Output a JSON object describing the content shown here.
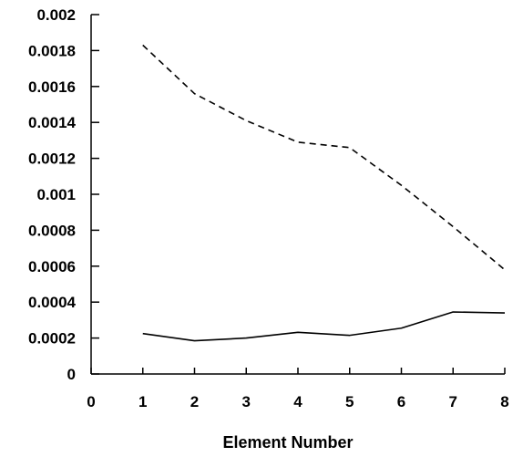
{
  "chart_data": {
    "type": "line",
    "xlabel": "Element Number",
    "ylabel": "",
    "title": "",
    "xlim": [
      0,
      8
    ],
    "ylim": [
      0,
      0.002
    ],
    "x_ticks": [
      "0",
      "1",
      "2",
      "3",
      "4",
      "5",
      "6",
      "7",
      "8"
    ],
    "y_ticks": [
      "0",
      "0.0002",
      "0.0004",
      "0.0006",
      "0.0008",
      "0.001",
      "0.0012",
      "0.0014",
      "0.0016",
      "0.0018",
      "0.002"
    ],
    "grid": false,
    "series": [
      {
        "style": "dashed",
        "color": "#000000",
        "x": [
          1,
          2,
          3,
          4,
          5,
          6,
          7,
          8
        ],
        "y": [
          0.00183,
          0.00156,
          0.00141,
          0.00129,
          0.00126,
          0.00105,
          0.00082,
          0.00058
        ]
      },
      {
        "style": "solid",
        "color": "#000000",
        "x": [
          1,
          2,
          3,
          4,
          5,
          6,
          7,
          8
        ],
        "y": [
          0.000225,
          0.000185,
          0.0002,
          0.000232,
          0.000215,
          0.000255,
          0.000345,
          0.00034
        ]
      }
    ]
  }
}
